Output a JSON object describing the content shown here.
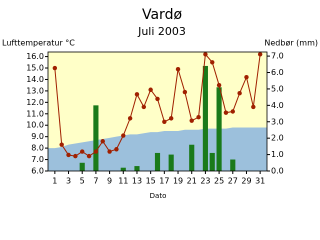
{
  "chart_data": {
    "type": "combo",
    "title": "Vardø",
    "subtitle": "Juli 2003",
    "ylabel": "Lufttemperatur °C",
    "y2label": "Nedbør (mm)",
    "xlabel": "Dato",
    "background": "#ffffc8",
    "x": [
      1,
      2,
      3,
      4,
      5,
      6,
      7,
      8,
      9,
      10,
      11,
      12,
      13,
      14,
      15,
      16,
      17,
      18,
      19,
      20,
      21,
      22,
      23,
      24,
      25,
      26,
      27,
      28,
      29,
      30,
      31
    ],
    "xlim": [
      0,
      32
    ],
    "xticks": [
      1,
      3,
      5,
      7,
      9,
      11,
      13,
      15,
      17,
      19,
      21,
      23,
      25,
      27,
      29,
      31
    ],
    "ylim": [
      6,
      16.4
    ],
    "yticks": [
      {
        "value": 6,
        "label": "6.0"
      },
      {
        "value": 7,
        "label": "7.0"
      },
      {
        "value": 8,
        "label": "8.0"
      },
      {
        "value": 9,
        "label": "9.0"
      },
      {
        "value": 10,
        "label": "10.0"
      },
      {
        "value": 11,
        "label": "11.0"
      },
      {
        "value": 12,
        "label": "12.0"
      },
      {
        "value": 13,
        "label": "13.0"
      },
      {
        "value": 14,
        "label": "14.0"
      },
      {
        "value": 15,
        "label": "15.0"
      },
      {
        "value": 16,
        "label": "16.0"
      }
    ],
    "y2lim": [
      0,
      7.25
    ],
    "y2ticks": [
      {
        "value": 0,
        "label": "0.0"
      },
      {
        "value": 1,
        "label": "1.0"
      },
      {
        "value": 2,
        "label": "2.0"
      },
      {
        "value": 3,
        "label": "3.0"
      },
      {
        "value": 4,
        "label": "4.0"
      },
      {
        "value": 5,
        "label": "5.0"
      },
      {
        "value": 6,
        "label": "6.0"
      },
      {
        "value": 7,
        "label": "7.0"
      }
    ],
    "series": [
      {
        "type": "area",
        "color": "#9cc0dc",
        "values": [
          8.0,
          8.1,
          8.3,
          8.4,
          8.5,
          8.6,
          8.7,
          8.8,
          8.9,
          9.0,
          9.1,
          9.2,
          9.2,
          9.3,
          9.4,
          9.4,
          9.5,
          9.5,
          9.5,
          9.6,
          9.6,
          9.6,
          9.7,
          9.7,
          9.7,
          9.7,
          9.8,
          9.8,
          9.8,
          9.8,
          9.8
        ]
      },
      {
        "type": "bar",
        "axis": "y2",
        "color": "#1a7a1a",
        "values": [
          0,
          0,
          0,
          0,
          0.5,
          0,
          4.0,
          0,
          0,
          0,
          0.2,
          0,
          0.3,
          0,
          0,
          1.1,
          0,
          1.0,
          0,
          0,
          1.6,
          0,
          6.4,
          1.1,
          5.1,
          0,
          0.7,
          0,
          0,
          0,
          0
        ]
      },
      {
        "type": "line",
        "color": "#a02000",
        "values": [
          15.0,
          8.3,
          7.4,
          7.3,
          7.7,
          7.3,
          7.7,
          8.6,
          7.7,
          7.9,
          9.1,
          10.6,
          12.7,
          11.6,
          13.1,
          12.3,
          10.3,
          10.6,
          14.9,
          12.9,
          10.4,
          10.7,
          16.2,
          15.5,
          13.5,
          11.1,
          11.2,
          12.8,
          14.2,
          11.6,
          16.2
        ]
      }
    ]
  }
}
